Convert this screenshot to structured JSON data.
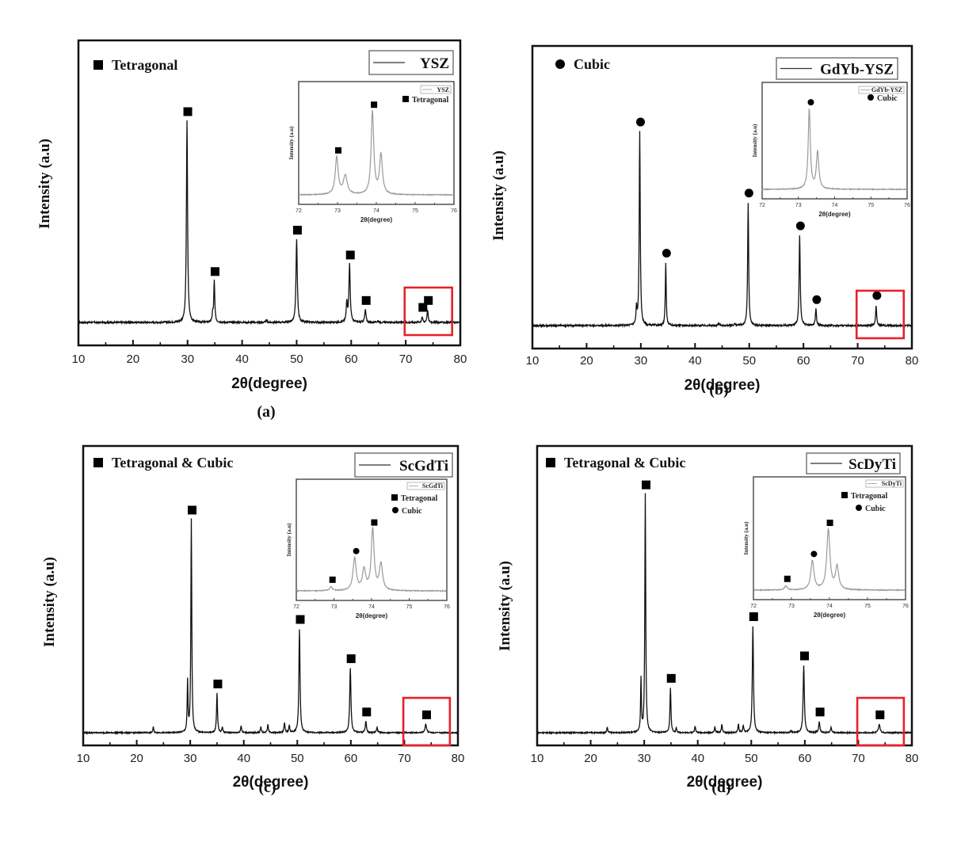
{
  "figure": {
    "panels_layout": "2x2"
  },
  "chart_data": [
    {
      "id": "a",
      "type": "line",
      "caption": "(a)",
      "xlabel": "2θ(degree)",
      "ylabel": "Intensity (a.u)",
      "xlim": [
        10,
        80
      ],
      "xticks": [
        10,
        20,
        30,
        40,
        50,
        60,
        70,
        80
      ],
      "ylim": [
        -10,
        100
      ],
      "yticks_shown": false,
      "legend": {
        "label": "YSZ",
        "placement": "top-right"
      },
      "phase_legend": [
        {
          "marker": "square",
          "label": "Tetragonal"
        }
      ],
      "baseline_noise": 0.6,
      "peaks": [
        {
          "x": 29.9,
          "y": 73,
          "width": 0.25,
          "marker": "square"
        },
        {
          "x": 34.6,
          "y": 3,
          "width": 0.2
        },
        {
          "x": 34.9,
          "y": 15,
          "width": 0.22,
          "marker": "square"
        },
        {
          "x": 50.0,
          "y": 30,
          "width": 0.28,
          "marker": "square"
        },
        {
          "x": 59.2,
          "y": 7,
          "width": 0.25
        },
        {
          "x": 59.7,
          "y": 21,
          "width": 0.28,
          "marker": "square"
        },
        {
          "x": 62.6,
          "y": 4.5,
          "width": 0.28,
          "marker": "square"
        },
        {
          "x": 73.0,
          "y": 2,
          "width": 0.25,
          "marker": "square"
        },
        {
          "x": 74.0,
          "y": 4.5,
          "width": 0.25,
          "marker": "square"
        },
        {
          "x": 44.5,
          "y": 0.8,
          "width": 0.25
        },
        {
          "x": 64.9,
          "y": 0.6,
          "width": 0.25
        }
      ],
      "highlight_region": {
        "x": [
          69.8,
          78.5
        ],
        "color": "#e8202a"
      },
      "inset": {
        "xlabel": "2θ(degree)",
        "ylabel": "Intensity (a.u)",
        "xlim": [
          72,
          76
        ],
        "xticks": [
          72,
          73,
          74,
          75,
          76
        ],
        "ylim": [
          0,
          100
        ],
        "legend_label": "YSZ",
        "phase_legend": [
          {
            "marker": "square",
            "label": "Tetragonal"
          }
        ],
        "line_color": "#9a9a9a",
        "peaks": [
          {
            "x": 72.98,
            "y": 36,
            "width": 0.09,
            "marker": "square"
          },
          {
            "x": 73.2,
            "y": 18,
            "width": 0.12
          },
          {
            "x": 73.9,
            "y": 80,
            "width": 0.08,
            "marker": "square"
          },
          {
            "x": 74.12,
            "y": 38,
            "width": 0.09
          }
        ]
      }
    },
    {
      "id": "b",
      "type": "line",
      "caption": "(b)",
      "xlabel": "2θ(degree)",
      "ylabel": "Intensity (a.u)",
      "xlim": [
        10,
        80
      ],
      "xticks": [
        10,
        20,
        30,
        40,
        50,
        60,
        70,
        80
      ],
      "ylim": [
        -10,
        100
      ],
      "yticks_shown": false,
      "legend": {
        "label": "GdYb-YSZ",
        "placement": "top-right"
      },
      "phase_legend": [
        {
          "marker": "circle",
          "label": "Cubic"
        }
      ],
      "baseline_noise": 0.6,
      "peaks": [
        {
          "x": 29.2,
          "y": 6,
          "width": 0.2
        },
        {
          "x": 29.8,
          "y": 71,
          "width": 0.22,
          "marker": "circle"
        },
        {
          "x": 34.6,
          "y": 23,
          "width": 0.2,
          "marker": "circle"
        },
        {
          "x": 49.8,
          "y": 45,
          "width": 0.22,
          "marker": "circle"
        },
        {
          "x": 59.3,
          "y": 33,
          "width": 0.24,
          "marker": "circle"
        },
        {
          "x": 62.3,
          "y": 6,
          "width": 0.25,
          "marker": "circle"
        },
        {
          "x": 73.4,
          "y": 7.5,
          "width": 0.22,
          "marker": "circle"
        },
        {
          "x": 44.4,
          "y": 1,
          "width": 0.25
        },
        {
          "x": 47.3,
          "y": 0.6,
          "width": 0.25
        }
      ],
      "highlight_region": {
        "x": [
          69.8,
          78.5
        ],
        "color": "#e8202a"
      },
      "inset": {
        "xlabel": "2θ(degree)",
        "ylabel": "Intensity (a.u)",
        "xlim": [
          72,
          76
        ],
        "xticks": [
          72,
          73,
          74,
          75,
          76
        ],
        "ylim": [
          0,
          100
        ],
        "legend_label": "GdYb-YSZ",
        "phase_legend": [
          {
            "marker": "circle",
            "label": "Cubic"
          }
        ],
        "line_color": "#9a9a9a",
        "peaks": [
          {
            "x": 73.3,
            "y": 82,
            "width": 0.07,
            "marker": "circle"
          },
          {
            "x": 73.53,
            "y": 38,
            "width": 0.08
          }
        ]
      }
    },
    {
      "id": "c",
      "type": "line",
      "caption": "(c)",
      "xlabel": "2θ(degree)",
      "ylabel": "Intensity (a.u)",
      "xlim": [
        10,
        80
      ],
      "xticks": [
        10,
        20,
        30,
        40,
        50,
        60,
        70,
        80
      ],
      "ylim": [
        -10,
        100
      ],
      "yticks_shown": false,
      "legend": {
        "label": "ScGdTi",
        "placement": "top-right"
      },
      "phase_legend": [
        {
          "marker": "square",
          "label": "Tetragonal & Cubic"
        }
      ],
      "baseline_noise": 0.4,
      "peaks": [
        {
          "x": 23.1,
          "y": 2,
          "width": 0.2
        },
        {
          "x": 29.5,
          "y": 18,
          "width": 0.18
        },
        {
          "x": 30.2,
          "y": 76,
          "width": 0.2,
          "marker": "square"
        },
        {
          "x": 35.0,
          "y": 14,
          "width": 0.22,
          "marker": "square"
        },
        {
          "x": 36.0,
          "y": 2,
          "width": 0.2
        },
        {
          "x": 39.5,
          "y": 2.5,
          "width": 0.22
        },
        {
          "x": 43.2,
          "y": 2,
          "width": 0.22
        },
        {
          "x": 44.5,
          "y": 3,
          "width": 0.22
        },
        {
          "x": 47.6,
          "y": 3.5,
          "width": 0.22
        },
        {
          "x": 48.5,
          "y": 2.5,
          "width": 0.22
        },
        {
          "x": 50.4,
          "y": 37,
          "width": 0.25,
          "marker": "square"
        },
        {
          "x": 59.9,
          "y": 23,
          "width": 0.27,
          "marker": "square"
        },
        {
          "x": 62.8,
          "y": 4,
          "width": 0.27,
          "marker": "square"
        },
        {
          "x": 64.9,
          "y": 1.8,
          "width": 0.25
        },
        {
          "x": 74.0,
          "y": 3,
          "width": 0.35,
          "marker": "square"
        }
      ],
      "highlight_region": {
        "x": [
          69.8,
          78.5
        ],
        "color": "#e8202a"
      },
      "inset": {
        "xlabel": "2θ(degree)",
        "ylabel": "Intensity (a.u)",
        "xlim": [
          72,
          76
        ],
        "xticks": [
          72,
          73,
          74,
          75,
          76
        ],
        "ylim": [
          0,
          100
        ],
        "legend_label": "ScGdTi",
        "phase_legend": [
          {
            "marker": "square",
            "label": "Tetragonal"
          },
          {
            "marker": "circle",
            "label": "Cubic"
          }
        ],
        "line_color": "#9a9a9a",
        "peaks": [
          {
            "x": 72.92,
            "y": 4,
            "width": 0.08,
            "marker": "square"
          },
          {
            "x": 73.55,
            "y": 32,
            "width": 0.1,
            "marker": "circle"
          },
          {
            "x": 73.8,
            "y": 20,
            "width": 0.1
          },
          {
            "x": 74.03,
            "y": 60,
            "width": 0.09,
            "marker": "square"
          },
          {
            "x": 74.25,
            "y": 26,
            "width": 0.1
          }
        ]
      }
    },
    {
      "id": "d",
      "type": "line",
      "caption": "(d)",
      "xlabel": "2θ(degree)",
      "ylabel": "Intensity (a.u)",
      "xlim": [
        10,
        80
      ],
      "xticks": [
        10,
        20,
        30,
        40,
        50,
        60,
        70,
        80
      ],
      "ylim": [
        -10,
        100
      ],
      "yticks_shown": false,
      "legend": {
        "label": "ScDyTi",
        "placement": "top-right"
      },
      "phase_legend": [
        {
          "marker": "square",
          "label": "Tetragonal & Cubic"
        }
      ],
      "baseline_noise": 0.4,
      "peaks": [
        {
          "x": 23.1,
          "y": 2,
          "width": 0.2
        },
        {
          "x": 29.4,
          "y": 19,
          "width": 0.18
        },
        {
          "x": 30.2,
          "y": 85,
          "width": 0.2,
          "marker": "square"
        },
        {
          "x": 34.9,
          "y": 16,
          "width": 0.22,
          "marker": "square"
        },
        {
          "x": 36.0,
          "y": 1.5,
          "width": 0.2
        },
        {
          "x": 39.5,
          "y": 2.5,
          "width": 0.22
        },
        {
          "x": 43.2,
          "y": 2,
          "width": 0.22
        },
        {
          "x": 44.5,
          "y": 3,
          "width": 0.22
        },
        {
          "x": 47.6,
          "y": 3,
          "width": 0.22
        },
        {
          "x": 48.5,
          "y": 2.5,
          "width": 0.22
        },
        {
          "x": 50.3,
          "y": 38,
          "width": 0.25,
          "marker": "square"
        },
        {
          "x": 57.4,
          "y": 0.8,
          "width": 0.25
        },
        {
          "x": 59.8,
          "y": 24,
          "width": 0.27,
          "marker": "square"
        },
        {
          "x": 62.7,
          "y": 4,
          "width": 0.27,
          "marker": "square"
        },
        {
          "x": 64.9,
          "y": 1.8,
          "width": 0.25
        },
        {
          "x": 73.9,
          "y": 3,
          "width": 0.35,
          "marker": "square"
        }
      ],
      "highlight_region": {
        "x": [
          69.8,
          78.5
        ],
        "color": "#e8202a"
      },
      "inset": {
        "xlabel": "2θ(degree)",
        "ylabel": "Intensity (a.u)",
        "xlim": [
          72,
          76
        ],
        "xticks": [
          72,
          73,
          74,
          75,
          76
        ],
        "ylim": [
          0,
          100
        ],
        "legend_label": "ScDyTi",
        "phase_legend": [
          {
            "marker": "square",
            "label": "Tetragonal"
          },
          {
            "marker": "circle",
            "label": "Cubic"
          }
        ],
        "line_color": "#9a9a9a",
        "peaks": [
          {
            "x": 72.85,
            "y": 4,
            "width": 0.08,
            "marker": "square"
          },
          {
            "x": 73.55,
            "y": 28,
            "width": 0.1,
            "marker": "circle"
          },
          {
            "x": 73.97,
            "y": 58,
            "width": 0.1,
            "marker": "square"
          },
          {
            "x": 74.2,
            "y": 22,
            "width": 0.1
          }
        ]
      }
    }
  ],
  "colors": {
    "main_line": "#111111",
    "inset_line": "#9a9a9a",
    "highlight_box": "#e8202a",
    "frame": "#111111"
  }
}
